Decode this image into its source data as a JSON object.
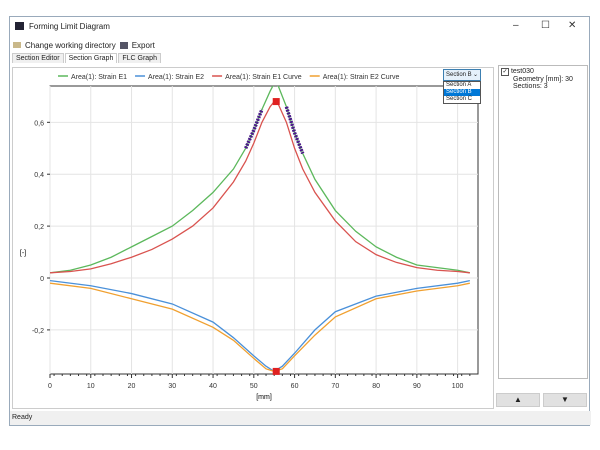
{
  "window": {
    "title": "Forming Limit Diagram",
    "minimize": "–",
    "maximize": "☐",
    "close": "✕"
  },
  "toolbar": {
    "change_dir": "Change working directory",
    "export": "Export"
  },
  "tabs": [
    {
      "label": "Section Editor"
    },
    {
      "label": "Section Graph",
      "active": true
    },
    {
      "label": "FLC Graph"
    }
  ],
  "section_select": {
    "value": "Section B",
    "options": [
      "Section A",
      "Section B",
      "Section C"
    ],
    "selected": "Section B"
  },
  "side_panel": {
    "item": "test030",
    "checked": true,
    "geometry": "Geometry [mm]: 30",
    "sections": "Sections: 3",
    "up": "▲",
    "down": "▼"
  },
  "status": "Ready",
  "chart_data": {
    "type": "line",
    "xlabel": "[mm]",
    "ylabel": "[-]",
    "xlim": [
      0,
      105
    ],
    "ylim": [
      -0.37,
      0.74
    ],
    "xticks": [
      "0",
      "10",
      "20",
      "30",
      "40",
      "50",
      "60",
      "70",
      "80",
      "90",
      "100"
    ],
    "yticks": [
      {
        "v": 0.6,
        "label": "0,6"
      },
      {
        "v": 0.4,
        "label": "0,4"
      },
      {
        "v": 0.2,
        "label": "0,2"
      },
      {
        "v": 0,
        "label": "0"
      },
      {
        "v": -0.2,
        "label": "-0,2"
      }
    ],
    "grid": true,
    "legend": "top",
    "series": [
      {
        "name": "Area(1): Strain E1",
        "color": "#5cb85c",
        "x": [
          0,
          5,
          10,
          15,
          20,
          25,
          30,
          35,
          40,
          45,
          48,
          50,
          52,
          54,
          55,
          56,
          58,
          60,
          62,
          65,
          70,
          75,
          80,
          85,
          90,
          95,
          100,
          103
        ],
        "y": [
          0.02,
          0.03,
          0.05,
          0.08,
          0.12,
          0.16,
          0.2,
          0.26,
          0.33,
          0.42,
          0.5,
          0.57,
          0.65,
          0.72,
          0.75,
          0.74,
          0.66,
          0.56,
          0.48,
          0.38,
          0.26,
          0.18,
          0.12,
          0.08,
          0.05,
          0.04,
          0.03,
          0.02
        ]
      },
      {
        "name": "Area(1): Strain E2",
        "color": "#4a90d9",
        "x": [
          0,
          10,
          20,
          30,
          40,
          45,
          50,
          53,
          55,
          57,
          60,
          65,
          70,
          80,
          90,
          100,
          103
        ],
        "y": [
          -0.01,
          -0.03,
          -0.06,
          -0.1,
          -0.17,
          -0.23,
          -0.3,
          -0.34,
          -0.36,
          -0.34,
          -0.29,
          -0.2,
          -0.13,
          -0.07,
          -0.04,
          -0.02,
          -0.01
        ]
      },
      {
        "name": "Area(1): Strain E1 Curve",
        "color": "#d9534f",
        "x": [
          0,
          5,
          10,
          15,
          20,
          25,
          30,
          35,
          40,
          45,
          48,
          50,
          52,
          54,
          55,
          56,
          58,
          60,
          62,
          65,
          70,
          75,
          80,
          85,
          90,
          95,
          100,
          103
        ],
        "y": [
          0.02,
          0.025,
          0.035,
          0.055,
          0.08,
          0.11,
          0.15,
          0.2,
          0.27,
          0.37,
          0.45,
          0.52,
          0.6,
          0.66,
          0.68,
          0.67,
          0.6,
          0.5,
          0.42,
          0.33,
          0.22,
          0.14,
          0.09,
          0.06,
          0.04,
          0.03,
          0.025,
          0.02
        ]
      },
      {
        "name": "Area(1): Strain E2 Curve",
        "color": "#f0a030",
        "x": [
          0,
          10,
          20,
          30,
          40,
          45,
          50,
          53,
          55,
          57,
          60,
          65,
          70,
          80,
          90,
          100,
          103
        ],
        "y": [
          -0.02,
          -0.04,
          -0.08,
          -0.12,
          -0.19,
          -0.24,
          -0.31,
          -0.35,
          -0.36,
          -0.35,
          -0.3,
          -0.22,
          -0.15,
          -0.08,
          -0.05,
          -0.03,
          -0.02
        ]
      }
    ],
    "highlight_ranges": [
      [
        46,
        52
      ],
      [
        58,
        64
      ]
    ],
    "highlight_color": "#4b1a8a",
    "peak_markers": [
      {
        "x": 55.5,
        "y": 0.68
      },
      {
        "x": 55.5,
        "y": -0.36
      }
    ],
    "marker_color": "#e02020"
  }
}
